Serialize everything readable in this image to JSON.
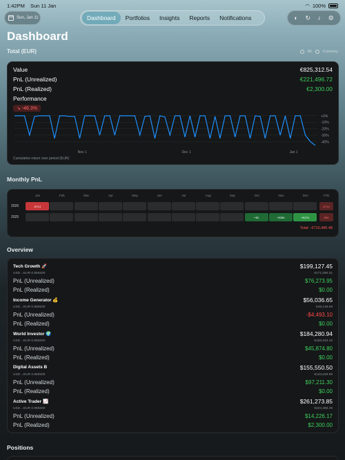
{
  "status_bar": {
    "time": "1:42PM",
    "date": "Sun 11 Jan",
    "battery": "100%"
  },
  "date_pill": {
    "label": "Sun, Jan 11"
  },
  "tabs": [
    {
      "label": "Dashboard",
      "active": true
    },
    {
      "label": "Portfolios",
      "active": false
    },
    {
      "label": "Insights",
      "active": false
    },
    {
      "label": "Reports",
      "active": false
    },
    {
      "label": "Notifications",
      "active": false
    }
  ],
  "toolbar_icons": [
    "palette-icon",
    "refresh-icon",
    "bell-icon",
    "gear-icon"
  ],
  "page_title": "Dashboard",
  "total": {
    "title": "Total (EUR)",
    "filter_label": "All",
    "currency_label": "Currency",
    "value_label": "Value",
    "value": "€825,312.54",
    "unrealized_label": "PnL (Unrealized)",
    "unrealized": "€221,496.72",
    "realized_label": "PnL (Realized)",
    "realized": "€2,300.00",
    "performance_label": "Performance",
    "performance": "↘ -46.3%",
    "caption": "Cumulative return over period (EUR)"
  },
  "chart_data": {
    "type": "line",
    "title": "",
    "xlabel": "",
    "ylabel": "",
    "x_tick_labels": [
      "Nov 1",
      "Dec 1",
      "Jan 1"
    ],
    "y_tick_labels": [
      "+0%",
      "-10%",
      "-20%",
      "-30%",
      "-40%"
    ],
    "ylim": [
      -45,
      2
    ],
    "series": [
      {
        "color": "#1e90ff",
        "values": [
          0,
          0,
          0,
          -30,
          -1,
          0,
          0,
          0,
          -35,
          0,
          0,
          -1,
          -1,
          -35,
          0,
          0,
          0,
          -30,
          0,
          0,
          -30,
          0,
          0,
          0,
          0,
          -30,
          -1,
          0,
          -35,
          0,
          -2,
          -30,
          0,
          0,
          -33,
          0,
          -33,
          0,
          0,
          -35,
          -1,
          -35,
          0,
          0,
          -33,
          0,
          0,
          -35,
          0,
          -1,
          -35,
          0,
          0,
          -30,
          0,
          -35,
          0,
          0,
          -30,
          -40,
          -46
        ]
      }
    ]
  },
  "monthly": {
    "title": "Monthly PnL",
    "months": [
      "Jan",
      "Feb",
      "Mar",
      "Apr",
      "May",
      "Jun",
      "Jul",
      "Aug",
      "Sep",
      "Oct",
      "Nov",
      "Dec",
      "YTD"
    ],
    "rows": [
      {
        "year": "2026",
        "cells": [
          "-€714",
          "",
          "",
          "",
          "",
          "",
          "",
          "",
          "",
          "",
          "",
          ""
        ],
        "ytd": "-€714"
      },
      {
        "year": "2025",
        "cells": [
          "",
          "",
          "",
          "",
          "",
          "",
          "",
          "",
          "",
          "+€6",
          "+€35K",
          "+€47K"
        ],
        "ytd": "-€9K"
      }
    ],
    "total": "Total: -€710,486.48"
  },
  "overview": {
    "title": "Overview",
    "unrealized_label": "PnL (Unrealized)",
    "realized_label": "PnL (Realized)",
    "portfolios": [
      {
        "name": "Tech Growth 🚀",
        "fx": "USD→EUR 0.859200",
        "value": "$199,127.45",
        "converted": "€171,090.31",
        "unrealized": "$76,273.95",
        "unrealized_sign": "pos",
        "realized": "$0.00"
      },
      {
        "name": "Income Generator 💰",
        "fx": "USD→EUR 0.859200",
        "value": "$56,036.65",
        "converted": "€48,146.69",
        "unrealized": "-$4,493.10",
        "unrealized_sign": "neg",
        "realized": "$0.00"
      },
      {
        "name": "World Investor 🌍",
        "fx": "USD→EUR 0.859200",
        "value": "$184,280.94",
        "converted": "€158,334.19",
        "unrealized": "$45,874.80",
        "unrealized_sign": "pos",
        "realized": "$0.00"
      },
      {
        "name": "Digital Assets B",
        "fx": "USD→EUR 0.859200",
        "value": "$155,550.50",
        "converted": "€133,648.99",
        "unrealized": "$97,211.30",
        "unrealized_sign": "pos",
        "realized": "$0.00"
      },
      {
        "name": "Active Trader 📈",
        "fx": "USD→EUR 0.859200",
        "value": "$261,273.85",
        "converted": "€224,486.49",
        "unrealized": "$14,226.17",
        "unrealized_sign": "pos",
        "realized": "$2,300.00"
      }
    ]
  },
  "positions": {
    "title": "Positions"
  }
}
